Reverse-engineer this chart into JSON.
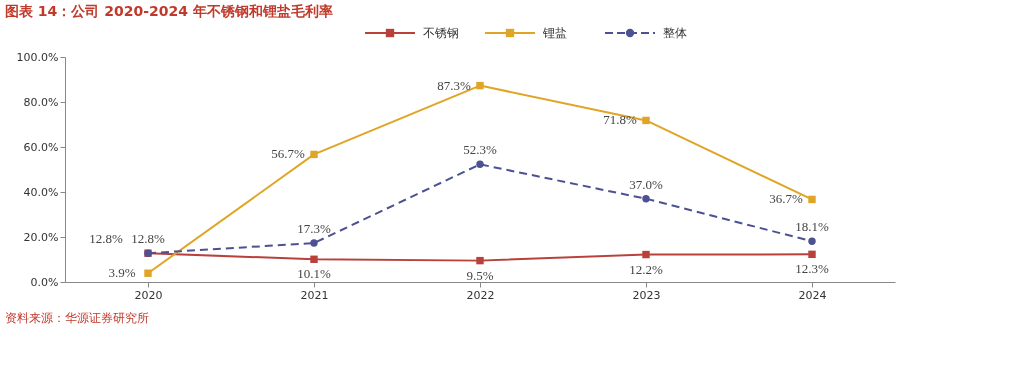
{
  "chart_data": {
    "type": "line",
    "title": "图表 14：公司 2020-2024 年不锈钢和锂盐毛利率",
    "categories": [
      "2020",
      "2021",
      "2022",
      "2023",
      "2024"
    ],
    "series": [
      {
        "name": "不锈钢",
        "color": "#b8413c",
        "values": [
          12.8,
          10.1,
          9.5,
          12.2,
          12.3
        ],
        "value_labels": [
          "12.8%",
          "10.1%",
          "9.5%",
          "12.2%",
          "12.3%"
        ],
        "marker": "square",
        "line_style": "solid"
      },
      {
        "name": "锂盐",
        "color": "#e0a526",
        "values": [
          3.9,
          56.7,
          87.3,
          71.8,
          36.7
        ],
        "value_labels": [
          "3.9%",
          "56.7%",
          "87.3%",
          "71.8%",
          "36.7%"
        ],
        "marker": "square",
        "line_style": "solid"
      },
      {
        "name": "整体",
        "color": "#4b5191",
        "values": [
          12.8,
          17.3,
          52.3,
          37.0,
          18.1
        ],
        "value_labels": [
          "12.8%",
          "17.3%",
          "52.3%",
          "37.0%",
          "18.1%"
        ],
        "marker": "circle",
        "line_style": "dashed"
      }
    ],
    "ylim": [
      0,
      100
    ],
    "yticks": [
      {
        "value": 0,
        "label": "0.0%"
      },
      {
        "value": 20,
        "label": "20.0%"
      },
      {
        "value": 40,
        "label": "40.0%"
      },
      {
        "value": 60,
        "label": "60.0%"
      },
      {
        "value": 80,
        "label": "80.0%"
      },
      {
        "value": 100,
        "label": "100.0%"
      }
    ],
    "grid": false,
    "legend": "top",
    "annotations": [
      "资料来源：华源证券研究所"
    ]
  }
}
